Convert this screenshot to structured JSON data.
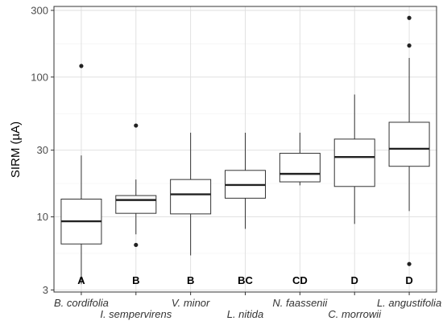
{
  "chart_data": {
    "type": "box",
    "ylabel": "SIRM (µA)",
    "xlabel": "",
    "title": "",
    "y_scale": "log10",
    "ylim": [
      2.9,
      320
    ],
    "y_ticks": [
      {
        "value": 3,
        "label": "3"
      },
      {
        "value": 10,
        "label": "10"
      },
      {
        "value": 30,
        "label": "30"
      },
      {
        "value": 100,
        "label": "100"
      },
      {
        "value": 300,
        "label": "300"
      }
    ],
    "grid": true,
    "categories": [
      "B. cordifolia",
      "I. sempervirens",
      "V. minor",
      "L. nitida",
      "N. faassenii",
      "C. morrowii",
      "L. angustifolia"
    ],
    "group_letters": [
      "A",
      "B",
      "B",
      "BC",
      "CD",
      "D",
      "D"
    ],
    "boxes": [
      {
        "min": 3.3,
        "q1": 6.4,
        "median": 9.3,
        "q3": 13.4,
        "max": 27.5,
        "outliers": [
          120
        ]
      },
      {
        "min": 7.5,
        "q1": 10.6,
        "median": 13.2,
        "q3": 14.2,
        "max": 18.5,
        "outliers": [
          6.3,
          45
        ]
      },
      {
        "min": 5.3,
        "q1": 10.5,
        "median": 14.5,
        "q3": 18.5,
        "max": 40,
        "outliers": []
      },
      {
        "min": 8.2,
        "q1": 13.6,
        "median": 16.9,
        "q3": 21.5,
        "max": 40,
        "outliers": []
      },
      {
        "min": 16.8,
        "q1": 17.8,
        "median": 20.3,
        "q3": 28.5,
        "max": 40,
        "outliers": []
      },
      {
        "min": 8.9,
        "q1": 16.5,
        "median": 26.8,
        "q3": 36,
        "max": 75,
        "outliers": []
      },
      {
        "min": 11,
        "q1": 23,
        "median": 30.7,
        "q3": 47.5,
        "max": 137,
        "outliers": [
          4.6,
          168,
          265
        ]
      }
    ]
  }
}
